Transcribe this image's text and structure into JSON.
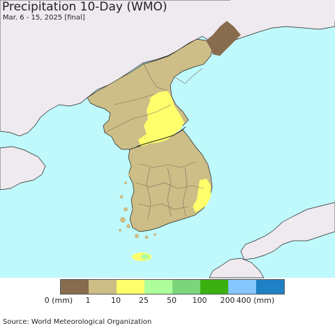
{
  "header": {
    "title": "Precipitation 10-Day (WMO)",
    "subtitle": "Mar. 6 - 15, 2025 [final]"
  },
  "map": {
    "sea_color": "#bff9fc",
    "foreign_land_color": "#efeaf0",
    "border_color": "#222222",
    "region_lines_color": "#7a6f5a"
  },
  "legend": {
    "colors": [
      "#876c4d",
      "#cdbd87",
      "#ffff6b",
      "#aefe9c",
      "#7bd57b",
      "#3ab111",
      "#85c7fe",
      "#1f80c5"
    ],
    "labels": [
      "0 (mm)",
      "1",
      "10",
      "25",
      "50",
      "100",
      "200",
      "400 (mm)"
    ]
  },
  "footer": {
    "source": "Source: World Meteorological Organization"
  }
}
